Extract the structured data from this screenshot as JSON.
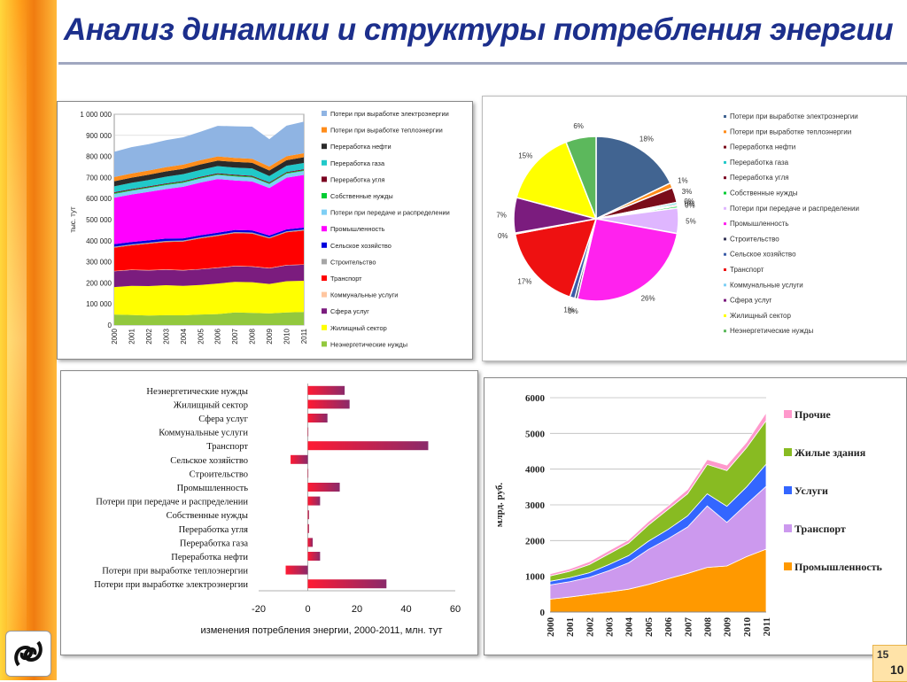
{
  "title": "Анализ динамики и структуры потребления энергии",
  "page": {
    "current": "15",
    "total": "10"
  },
  "chart_data": [
    {
      "type": "area",
      "name": "stacked-consumption",
      "ylabel": "тыс. тут",
      "x": [
        "2000",
        "2001",
        "2002",
        "2003",
        "2004",
        "2005",
        "2006",
        "2007",
        "2008",
        "2009",
        "2010",
        "2011"
      ],
      "ylim": [
        0,
        1000000
      ],
      "yticks": [
        "0",
        "100 000",
        "200 000",
        "300 000",
        "400 000",
        "500 000",
        "600 000",
        "700 000",
        "800 000",
        "900 000",
        "1 000 000"
      ],
      "series": [
        {
          "name": "Неэнергетические нужды",
          "color": "#92c83e",
          "values": [
            50000,
            48000,
            45000,
            47000,
            46000,
            50000,
            52000,
            60000,
            58000,
            55000,
            60000,
            62000
          ]
        },
        {
          "name": "Жилищный сектор",
          "color": "#ffff00",
          "values": [
            130000,
            138000,
            140000,
            142000,
            140000,
            140000,
            145000,
            145000,
            145000,
            140000,
            148000,
            148000
          ]
        },
        {
          "name": "Сфера услуг",
          "color": "#7b1c7e",
          "values": [
            75000,
            75000,
            74000,
            73000,
            73000,
            74000,
            74000,
            74000,
            74000,
            74000,
            75000,
            76000
          ]
        },
        {
          "name": "Коммунальные услуги",
          "color": "#ffc6a0",
          "values": [
            2000,
            2000,
            2000,
            2000,
            2000,
            2000,
            2000,
            2000,
            2000,
            2000,
            2000,
            2000
          ]
        },
        {
          "name": "Транспорт",
          "color": "#ff0000",
          "values": [
            110000,
            115000,
            125000,
            130000,
            135000,
            145000,
            150000,
            155000,
            155000,
            140000,
            155000,
            160000
          ]
        },
        {
          "name": "Строительство",
          "color": "#a6a6a6",
          "values": [
            5000,
            5000,
            5000,
            5000,
            5000,
            5000,
            5000,
            5000,
            5000,
            5000,
            5000,
            5000
          ]
        },
        {
          "name": "Сельское хозяйство",
          "color": "#0000dd",
          "values": [
            12000,
            11000,
            11000,
            11000,
            10000,
            10000,
            10000,
            10000,
            10000,
            9000,
            9000,
            9000
          ]
        },
        {
          "name": "Промышленность",
          "color": "#ff00ff",
          "values": [
            220000,
            225000,
            230000,
            235000,
            245000,
            250000,
            255000,
            235000,
            232000,
            225000,
            245000,
            250000
          ]
        },
        {
          "name": "Потери при передаче и распределении",
          "color": "#7ecff5",
          "values": [
            18000,
            18000,
            18000,
            19000,
            19000,
            19000,
            19000,
            19000,
            19000,
            19000,
            19000,
            19000
          ]
        },
        {
          "name": "Собственные нужды",
          "color": "#00cc33",
          "values": [
            4000,
            4000,
            4000,
            4000,
            4000,
            4000,
            4000,
            4000,
            4000,
            4000,
            4000,
            4000
          ]
        },
        {
          "name": "Переработка угля",
          "color": "#7a0020",
          "values": [
            4000,
            4000,
            4000,
            4000,
            4000,
            4000,
            4000,
            4000,
            4000,
            4000,
            4000,
            4000
          ]
        },
        {
          "name": "Переработка газа",
          "color": "#21c9c9",
          "values": [
            28000,
            30000,
            30000,
            32000,
            33000,
            33000,
            34000,
            34000,
            35000,
            30000,
            30000,
            30000
          ]
        },
        {
          "name": "Переработка нефти",
          "color": "#2b2b2b",
          "values": [
            24000,
            24000,
            25000,
            25000,
            25000,
            26000,
            26000,
            27000,
            27000,
            26000,
            26000,
            27000
          ]
        },
        {
          "name": "Потери при выработке теплоэнергии",
          "color": "#ff8c1a",
          "values": [
            20000,
            20000,
            20000,
            20000,
            20000,
            20000,
            20000,
            19000,
            19000,
            19000,
            19000,
            19000
          ]
        },
        {
          "name": "Потери при выработке электроэнергии",
          "color": "#8fb4e3",
          "values": [
            120000,
            125000,
            125000,
            128000,
            130000,
            135000,
            145000,
            150000,
            152000,
            130000,
            145000,
            150000
          ]
        }
      ],
      "legend_order": [
        "Потери при выработке электроэнергии",
        "Потери при выработке теплоэнергии",
        "Переработка нефти",
        "Переработка газа",
        "Переработка угля",
        "Собственные нужды",
        "Потери при передаче и распределении",
        "Промышленность",
        "Сельское хозяйство",
        "Строительство",
        "Транспорт",
        "Коммунальные услуги",
        "Сфера услуг",
        "Жилищный сектор",
        "Неэнергетические нужды"
      ],
      "legend_position": "right"
    },
    {
      "type": "pie",
      "name": "structure-pie",
      "slices": [
        {
          "label": "Потери при выработке электроэнергии",
          "value": 18,
          "text": "18%",
          "color": "#416491"
        },
        {
          "label": "Потери при выработке теплоэнергии",
          "value": 1,
          "text": "1%",
          "color": "#ff8c1a"
        },
        {
          "label": "Переработка нефти",
          "value": 3,
          "text": "3%",
          "color": "#7a0c1a"
        },
        {
          "label": "Переработка газа",
          "value": 0.4,
          "text": "0%",
          "color": "#21c9c9"
        },
        {
          "label": "Переработка угля",
          "value": 0.3,
          "text": "0%",
          "color": "#7a0020"
        },
        {
          "label": "Собственные нужды",
          "value": 0.4,
          "text": "0%",
          "color": "#00cc33"
        },
        {
          "label": "Потери при передаче и распределении",
          "value": 5,
          "text": "5%",
          "color": "#dfb6ff"
        },
        {
          "label": "Промышленность",
          "value": 26,
          "text": "26%",
          "color": "#ff22ee"
        },
        {
          "label": "Строительство",
          "value": 0.5,
          "text": "0%",
          "color": "#333355"
        },
        {
          "label": "Сельское хозяйство",
          "value": 1,
          "text": "1%",
          "color": "#3b5ca8"
        },
        {
          "label": "Транспорт",
          "value": 17,
          "text": "17%",
          "color": "#ee1111"
        },
        {
          "label": "Коммунальные услуги",
          "value": 0.2,
          "text": "0%",
          "color": "#7ecff5"
        },
        {
          "label": "Сфера услуг",
          "value": 7,
          "text": "7%",
          "color": "#7b1c7e"
        },
        {
          "label": "Жилищный сектор",
          "value": 15,
          "text": "15%",
          "color": "#ffff00"
        },
        {
          "label": "Неэнергетические нужды",
          "value": 6,
          "text": "6%",
          "color": "#5cb85c"
        }
      ],
      "legend": [
        {
          "label": "Потери при выработке электроэнергии",
          "color": "#416491"
        },
        {
          "label": "Потери при выработке теплоэнергии",
          "color": "#ff8c1a"
        },
        {
          "label": "Переработка нефти",
          "color": "#7a0c1a"
        },
        {
          "label": "Переработка газа",
          "color": "#21c9c9"
        },
        {
          "label": "Переработка угля",
          "color": "#7a0020"
        },
        {
          "label": "Собственные нужды",
          "color": "#00cc33"
        },
        {
          "label": "Потери при передаче и распределении",
          "color": "#dfb6ff"
        },
        {
          "label": "Промышленность",
          "color": "#ff22ee"
        },
        {
          "label": "Строительство",
          "color": "#333355"
        },
        {
          "label": "Сельское хозяйство",
          "color": "#3b5ca8"
        },
        {
          "label": "Транспорт",
          "color": "#ee1111"
        },
        {
          "label": "Коммунальные услуги",
          "color": "#7ecff5"
        },
        {
          "label": "Сфера услуг",
          "color": "#7b1c7e"
        },
        {
          "label": "Жилищный сектор",
          "color": "#ffff00"
        },
        {
          "label": "Неэнергетические нужды",
          "color": "#5cb85c"
        }
      ],
      "legend_position": "right"
    },
    {
      "type": "bar",
      "name": "change-bar",
      "orientation": "horizontal",
      "xlabel": "изменения потребления энергии, 2000-2011, млн. тут",
      "xlim": [
        -20,
        60
      ],
      "xticks": [
        "-20",
        "0",
        "20",
        "40",
        "60"
      ],
      "categories": [
        "Неэнергетические нужды",
        "Жилищный сектор",
        "Сфера услуг",
        "Коммунальные услуги",
        "Транспорт",
        "Сельское хозяйство",
        "Строительство",
        "Промышленность",
        "Потери при передаче и распределении",
        "Собственные нужды",
        "Переработка угля",
        "Переработка газа",
        "Переработка нефти",
        "Потери при выработке теплоэнергии",
        "Потери при выработке электроэнергии"
      ],
      "values": [
        15,
        17,
        8,
        0,
        49,
        -7,
        0,
        13,
        5,
        0.5,
        0.5,
        2,
        5,
        -9,
        32
      ]
    },
    {
      "type": "area",
      "name": "stacked-billion-rub",
      "ylabel": "млрд. руб.",
      "x": [
        "2000",
        "2001",
        "2002",
        "2003",
        "2004",
        "2005",
        "2006",
        "2007",
        "2008",
        "2009",
        "2010",
        "2011"
      ],
      "ylim": [
        0,
        6000
      ],
      "yticks": [
        "0",
        "1000",
        "2000",
        "3000",
        "4000",
        "5000",
        "6000"
      ],
      "series": [
        {
          "name": "Промышленность",
          "color": "#ff9900",
          "values": [
            360,
            420,
            490,
            560,
            640,
            770,
            930,
            1080,
            1250,
            1290,
            1550,
            1760
          ]
        },
        {
          "name": "Транспорт",
          "color": "#cc99ee",
          "values": [
            400,
            430,
            480,
            600,
            740,
            980,
            1120,
            1300,
            1720,
            1220,
            1470,
            1760
          ]
        },
        {
          "name": "Услуги",
          "color": "#3366ff",
          "values": [
            100,
            110,
            130,
            170,
            200,
            230,
            260,
            310,
            340,
            450,
            480,
            620
          ]
        },
        {
          "name": "Жилые здания",
          "color": "#88bb22",
          "values": [
            150,
            180,
            230,
            300,
            350,
            450,
            560,
            620,
            820,
            1000,
            1100,
            1220
          ]
        },
        {
          "name": "Прочие",
          "color": "#ff99cc",
          "values": [
            60,
            70,
            80,
            90,
            90,
            100,
            100,
            120,
            140,
            150,
            150,
            220
          ]
        }
      ],
      "legend_order": [
        "Прочие",
        "Жилые здания",
        "Услуги",
        "Транспорт",
        "Промышленность"
      ],
      "legend_position": "right"
    }
  ]
}
